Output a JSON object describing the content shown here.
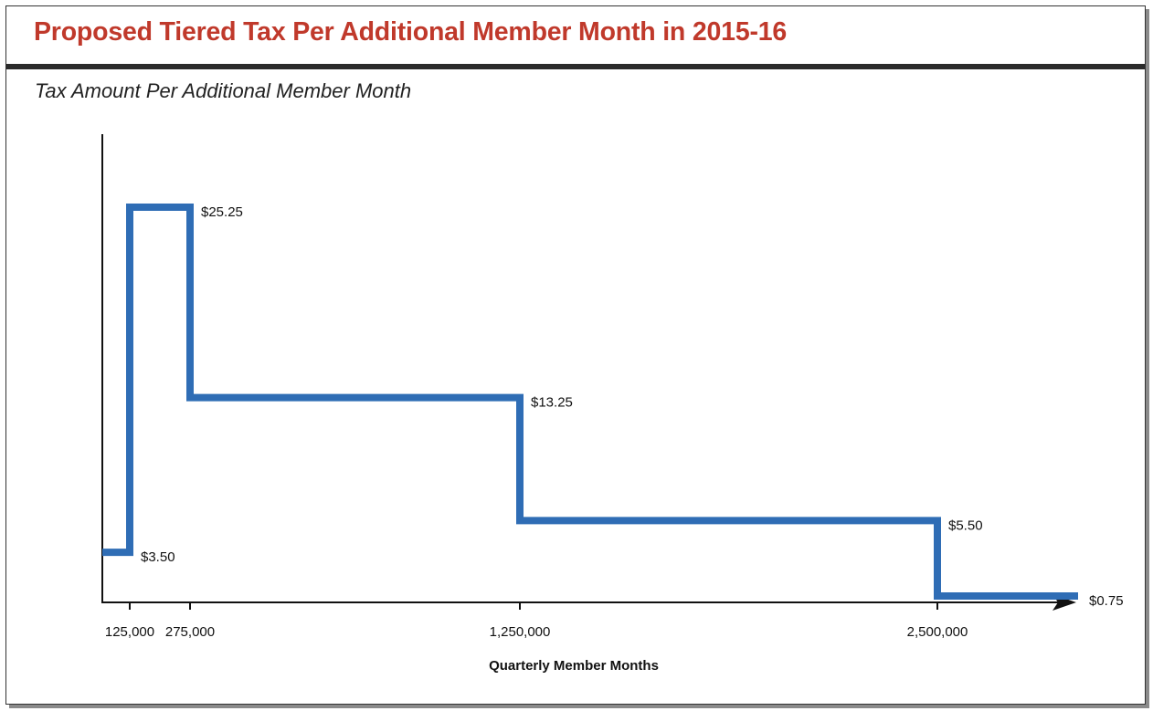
{
  "chart_data": {
    "type": "line",
    "step": "post",
    "title": "Proposed Tiered Tax Per Additional Member Month in 2015-16",
    "subtitle": "Tax Amount Per Additional Member Month",
    "xlabel": "Quarterly Member Months",
    "ylabel": "",
    "x_ticks": [
      125000,
      275000,
      1250000,
      2500000
    ],
    "x_tick_labels": [
      "125,000",
      "275,000",
      "1,250,000",
      "2,500,000"
    ],
    "grid": false,
    "legend": "none",
    "series": [
      {
        "name": "",
        "color": "#2f6db5",
        "points": [
          {
            "x_start": 0,
            "x_end": 125000,
            "y": 3.5,
            "label": "$3.50"
          },
          {
            "x_start": 125000,
            "x_end": 275000,
            "y": 25.25,
            "label": "$25.25"
          },
          {
            "x_start": 275000,
            "x_end": 1250000,
            "y": 13.25,
            "label": "$13.25"
          },
          {
            "x_start": 1250000,
            "x_end": 2500000,
            "y": 5.5,
            "label": "$5.50"
          },
          {
            "x_start": 2500000,
            "x_end": 2900000,
            "y": 0.75,
            "label": "$0.75"
          }
        ]
      }
    ]
  }
}
